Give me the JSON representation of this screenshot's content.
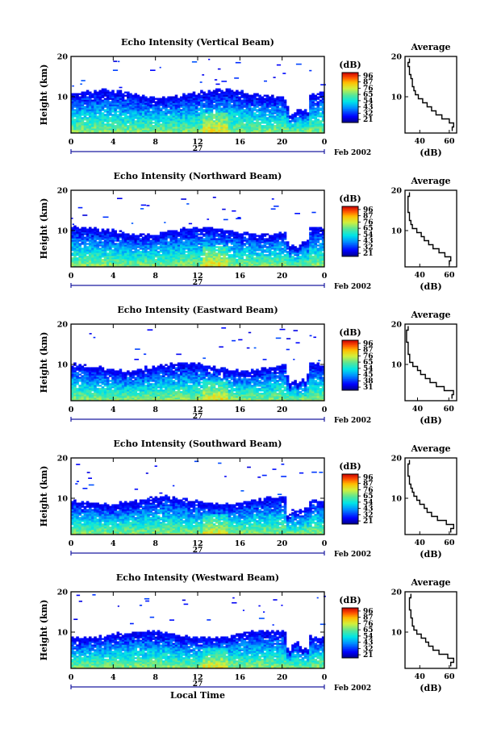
{
  "figure": {
    "xlabel": "Local Time",
    "date_suffix": "Feb 2002",
    "day_label": "27"
  },
  "chart_data": [
    {
      "type": "heatmap",
      "title": "Echo Intensity (Vertical Beam)",
      "xlabel": "",
      "ylabel": "Height (km)",
      "x_ticks": [
        "0",
        "4",
        "8",
        "12",
        "16",
        "20",
        "0"
      ],
      "y_ticks": [
        "20",
        "10"
      ],
      "xlim": [
        0,
        24
      ],
      "ylim": [
        1,
        20
      ],
      "colorbar": {
        "unit": "(dB)",
        "ticks": [
          "96",
          "87",
          "76",
          "65",
          "54",
          "43",
          "32",
          "21"
        ]
      },
      "profile": {
        "title": "Average",
        "xlabel": "(dB)",
        "x_ticks": [
          "40",
          "60"
        ],
        "xlim": [
          30,
          65
        ],
        "y_ticks": [
          "20",
          "10"
        ],
        "heights": [
          2,
          3,
          4,
          5,
          6,
          7,
          8,
          9,
          10,
          11,
          12,
          13,
          14,
          15,
          16,
          17,
          18,
          19
        ],
        "values": [
          62,
          63,
          60,
          55,
          51,
          48,
          45,
          42,
          39,
          37,
          36,
          35,
          35,
          34,
          33,
          33,
          32,
          33
        ]
      },
      "top_height_km": 10.8
    },
    {
      "type": "heatmap",
      "title": "Echo Intensity (Northward Beam)",
      "xlabel": "",
      "ylabel": "Height (km)",
      "x_ticks": [
        "0",
        "4",
        "8",
        "12",
        "16",
        "20",
        "0"
      ],
      "y_ticks": [
        "20",
        "10"
      ],
      "xlim": [
        0,
        24
      ],
      "ylim": [
        1,
        20
      ],
      "colorbar": {
        "unit": "(dB)",
        "ticks": [
          "96",
          "87",
          "76",
          "65",
          "54",
          "43",
          "32",
          "21"
        ]
      },
      "profile": {
        "title": "Average",
        "xlabel": "(dB)",
        "x_ticks": [
          "40",
          "60"
        ],
        "xlim": [
          30,
          65
        ],
        "y_ticks": [
          "20",
          "10"
        ],
        "heights": [
          2,
          3,
          4,
          5,
          6,
          7,
          8,
          9,
          10,
          11,
          12,
          13,
          14,
          15,
          16,
          17,
          18,
          19
        ],
        "values": [
          60,
          61,
          57,
          53,
          49,
          46,
          43,
          41,
          38,
          35,
          34,
          33,
          33,
          32,
          32,
          32,
          32,
          33
        ]
      },
      "top_height_km": 10.0
    },
    {
      "type": "heatmap",
      "title": "Echo Intensity (Eastward Beam)",
      "xlabel": "",
      "ylabel": "Height (km)",
      "x_ticks": [
        "0",
        "4",
        "8",
        "12",
        "16",
        "20",
        "0"
      ],
      "y_ticks": [
        "20",
        "10"
      ],
      "xlim": [
        0,
        24
      ],
      "ylim": [
        1,
        20
      ],
      "colorbar": {
        "unit": "(dB)",
        "ticks": [
          "96",
          "87",
          "76",
          "65",
          "54",
          "45",
          "38",
          "31"
        ]
      },
      "profile": {
        "title": "Average",
        "xlabel": "(dB)",
        "x_ticks": [
          "40",
          "60"
        ],
        "xlim": [
          32,
          65
        ],
        "y_ticks": [
          "20",
          "10"
        ],
        "heights": [
          2,
          3,
          4,
          5,
          6,
          7,
          8,
          9,
          10,
          11,
          12,
          13,
          14,
          15,
          16,
          17,
          18,
          19
        ],
        "values": [
          62,
          63,
          57,
          52,
          48,
          45,
          42,
          40,
          37,
          35,
          35,
          34,
          34,
          34,
          33,
          33,
          33,
          34
        ]
      },
      "top_height_km": 9.5
    },
    {
      "type": "heatmap",
      "title": "Echo Intensity (Southward Beam)",
      "xlabel": "",
      "ylabel": "Height (km)",
      "x_ticks": [
        "0",
        "4",
        "8",
        "12",
        "16",
        "20",
        "0"
      ],
      "y_ticks": [
        "20",
        "10"
      ],
      "xlim": [
        0,
        24
      ],
      "ylim": [
        1,
        20
      ],
      "colorbar": {
        "unit": "(dB)",
        "ticks": [
          "96",
          "87",
          "76",
          "65",
          "54",
          "43",
          "32",
          "21"
        ]
      },
      "profile": {
        "title": "Average",
        "xlabel": "(dB)",
        "x_ticks": [
          "40",
          "60"
        ],
        "xlim": [
          30,
          65
        ],
        "y_ticks": [
          "20",
          "10"
        ],
        "heights": [
          2,
          3,
          4,
          5,
          6,
          7,
          8,
          9,
          10,
          11,
          12,
          13,
          14,
          15,
          16,
          17,
          18,
          19
        ],
        "values": [
          61,
          63,
          58,
          52,
          48,
          45,
          43,
          40,
          38,
          36,
          35,
          34,
          33,
          33,
          32,
          32,
          32,
          33
        ]
      },
      "top_height_km": 9.5
    },
    {
      "type": "heatmap",
      "title": "Echo Intensity (Westward Beam)",
      "xlabel": "",
      "ylabel": "Height (km)",
      "x_ticks": [
        "0",
        "4",
        "8",
        "12",
        "16",
        "20",
        "0"
      ],
      "y_ticks": [
        "20",
        "10"
      ],
      "xlim": [
        0,
        24
      ],
      "ylim": [
        1,
        20
      ],
      "colorbar": {
        "unit": "(dB)",
        "ticks": [
          "96",
          "87",
          "76",
          "65",
          "54",
          "43",
          "32",
          "21"
        ]
      },
      "profile": {
        "title": "Average",
        "xlabel": "(dB)",
        "x_ticks": [
          "40",
          "60"
        ],
        "xlim": [
          30,
          65
        ],
        "y_ticks": [
          "20",
          "10"
        ],
        "heights": [
          2,
          3,
          4,
          5,
          6,
          7,
          8,
          9,
          10,
          11,
          12,
          13,
          14,
          15,
          16,
          17,
          18,
          19
        ],
        "values": [
          61,
          63,
          59,
          53,
          49,
          46,
          44,
          41,
          38,
          36,
          35,
          35,
          34,
          34,
          33,
          33,
          33,
          34
        ]
      },
      "top_height_km": 9.5
    }
  ]
}
